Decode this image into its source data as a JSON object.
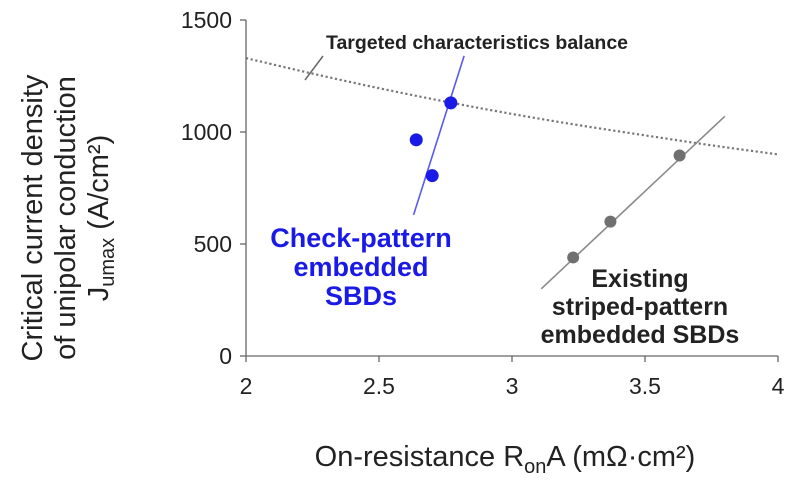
{
  "chart_data": {
    "type": "scatter",
    "title": "",
    "xlim": [
      2,
      4
    ],
    "ylim": [
      0,
      1500
    ],
    "x_ticks": [
      2,
      2.5,
      3,
      3.5,
      4
    ],
    "y_ticks": [
      0,
      500,
      1000,
      1500
    ],
    "x_tick_labels": [
      "2",
      "2.5",
      "3",
      "3.5",
      "4"
    ],
    "y_tick_labels": [
      "0",
      "500",
      "1000",
      "1500"
    ],
    "xlabel": {
      "prefix": "On-resistance R",
      "sub": "on",
      "suffix": "A  (mΩ·cm²)"
    },
    "ylabel": {
      "line1": "Critical current density",
      "line2": "of unipolar conduction",
      "line3_prefix": "J",
      "line3_sub": "umax",
      "line3_suffix": "  (A/cm²)"
    },
    "grid": false,
    "series": [
      {
        "name": "Check-pattern embedded SBDs",
        "color": "#1a1ae6",
        "points": [
          [
            2.64,
            965
          ],
          [
            2.7,
            805
          ],
          [
            2.77,
            1130
          ]
        ],
        "trend": [
          [
            2.63,
            630
          ],
          [
            2.82,
            1340
          ]
        ]
      },
      {
        "name": "Existing striped-pattern embedded SBDs",
        "color": "#707070",
        "points": [
          [
            3.23,
            440
          ],
          [
            3.37,
            600
          ],
          [
            3.63,
            895
          ]
        ],
        "trend": [
          [
            3.11,
            300
          ],
          [
            3.8,
            1070
          ]
        ]
      }
    ],
    "reference_curve": {
      "name": "Targeted characteristics balance",
      "color": "#777777",
      "points": [
        [
          2.0,
          1330
        ],
        [
          2.25,
          1260
        ],
        [
          2.5,
          1195
        ],
        [
          2.75,
          1135
        ],
        [
          3.0,
          1080
        ],
        [
          3.25,
          1030
        ],
        [
          3.5,
          985
        ],
        [
          3.75,
          940
        ],
        [
          4.0,
          900
        ]
      ]
    },
    "annotations": {
      "reference_label": "Targeted characteristics balance",
      "check_label": [
        "Check-pattern",
        "embedded",
        "SBDs"
      ],
      "striped_label": [
        "Existing",
        "striped-pattern",
        "embedded SBDs"
      ]
    }
  }
}
